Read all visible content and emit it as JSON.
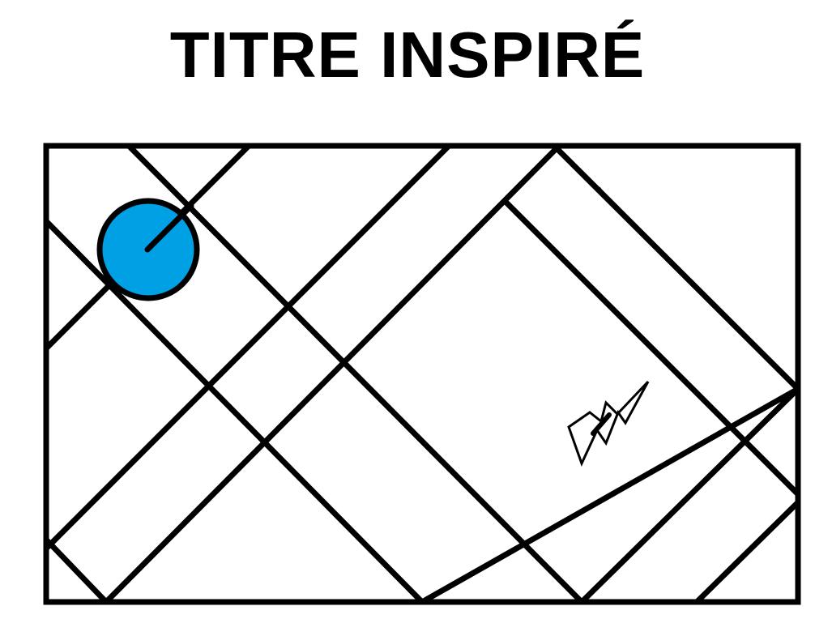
{
  "title": "TITRE INSPIRÉ",
  "colors": {
    "line": "#000000",
    "ball_fill": "#00A0E4",
    "background": "#FFFFFF"
  },
  "icons": {
    "ball": "blue-circle-icon",
    "arrow": "lightning-arrow-icon"
  }
}
